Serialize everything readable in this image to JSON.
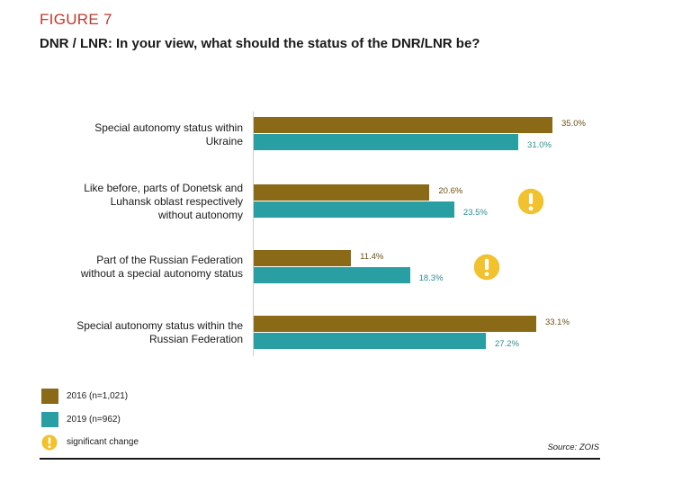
{
  "figure_label": "FIGURE 7",
  "title": "DNR / LNR: In your view, what should the status of the DNR/LNR be?",
  "source": "Source: ZOIS",
  "colors": {
    "series_2016": "#8a6a16",
    "series_2019": "#2a9fa3",
    "significant": "#f2c12e",
    "figure_label": "#c0392b"
  },
  "legend": [
    {
      "label": "2016 (n=1,021)",
      "color": "#8a6a16",
      "icon": "square"
    },
    {
      "label": "2019 (n=962)",
      "color": "#2a9fa3",
      "icon": "square"
    },
    {
      "label": "significant change",
      "color": "#f2c12e",
      "icon": "exclamation-circle-icon"
    }
  ],
  "chart_data": {
    "type": "bar",
    "orientation": "horizontal",
    "categories": [
      "Special autonomy status within Ukraine",
      "Like before, parts of Donetsk and Luhansk oblast respectively without autonomy",
      "Part of the Russian Federation without a special autonomy status",
      "Special autonomy status within the Russian Federation"
    ],
    "category_lines": [
      [
        "Special autonomy status within",
        "Ukraine"
      ],
      [
        "Like before, parts of Donetsk and",
        "Luhansk oblast respectively",
        "without autonomy"
      ],
      [
        "Part of the Russian Federation",
        "without a special autonomy status"
      ],
      [
        "Special autonomy status within the",
        "Russian Federation"
      ]
    ],
    "series": [
      {
        "name": "2016 (n=1,021)",
        "values": [
          35.0,
          20.6,
          11.4,
          33.1
        ],
        "labels": [
          "35.0%",
          "20.6%",
          "11.4%",
          "33.1%"
        ]
      },
      {
        "name": "2019 (n=962)",
        "values": [
          31.0,
          23.5,
          18.3,
          27.2
        ],
        "labels": [
          "31.0%",
          "23.5%",
          "18.3%",
          "27.2%"
        ]
      }
    ],
    "significant_change": [
      false,
      true,
      true,
      false
    ],
    "xlim": [
      0,
      35
    ],
    "unit": "%",
    "grid": false,
    "legend_position": "bottom-left"
  }
}
